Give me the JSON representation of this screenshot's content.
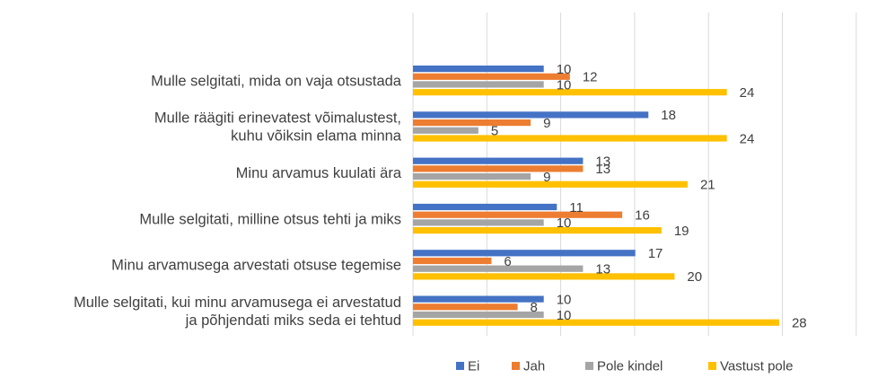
{
  "chart_data": {
    "type": "bar",
    "orientation": "horizontal",
    "title": "",
    "xlabel": "",
    "ylabel": "",
    "xlim": [
      0,
      34
    ],
    "grid": true,
    "legend_position": "bottom",
    "categories": [
      [
        "Mulle selgitati, mida on vaja otsustada"
      ],
      [
        "Mulle räägiti erinevatest võimalustest,",
        "kuhu võiksin elama minna"
      ],
      [
        "Minu arvamus kuulati ära"
      ],
      [
        "Mulle selgitati, milline otsus tehti ja miks"
      ],
      [
        "Minu arvamusega arvestati otsuse tegemise"
      ],
      [
        "Mulle selgitati, kui minu arvamusega ei arvestatud",
        "ja põhjendati miks seda ei tehtud"
      ]
    ],
    "series": [
      {
        "name": "Ei",
        "color": "#4472C4",
        "values": [
          10,
          18,
          13,
          11,
          17,
          10
        ]
      },
      {
        "name": "Jah",
        "color": "#ED7D31",
        "values": [
          12,
          9,
          13,
          16,
          6,
          8
        ]
      },
      {
        "name": "Pole kindel",
        "color": "#A5A5A5",
        "values": [
          10,
          5,
          9,
          10,
          13,
          10
        ]
      },
      {
        "name": "Vastust pole",
        "color": "#FFC000",
        "values": [
          24,
          24,
          21,
          19,
          20,
          28
        ]
      }
    ]
  }
}
